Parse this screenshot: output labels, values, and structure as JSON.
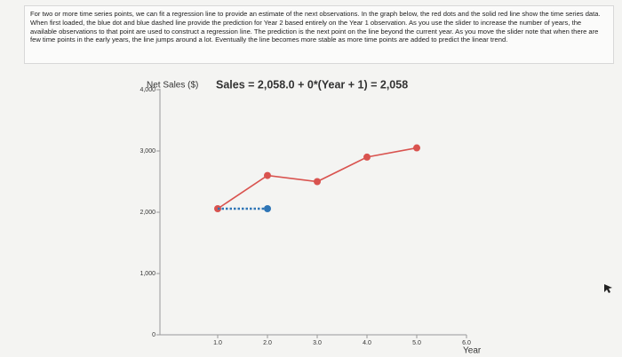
{
  "intro": "For two or more time series points, we can fit a regression line to provide an estimate of the next observations. In the graph below, the red dots and the solid red line show the time series data. When first loaded, the blue dot and blue dashed line provide the prediction for Year 2 based entirely on the Year 1 observation. As you use the slider to increase the number of years, the available observations to that point are used to construct a regression line. The prediction is the next point on the line beyond the current year. As you move the slider note that when there are few time points in the early years, the line jumps around a lot. Eventually the line becomes more stable as more time points are added to predict the linear trend.",
  "chart_data": {
    "type": "line",
    "ylabel": "Net Sales ($)",
    "equation": "Sales = 2,058.0 + 0*(Year + 1) = 2,058",
    "xlabel": "Year",
    "x": [
      1,
      2,
      3,
      4,
      5
    ],
    "series": [
      {
        "color": "#d9534f",
        "values": [
          2058,
          2600,
          2500,
          2900,
          3050
        ]
      },
      {
        "color": "#2e75b6",
        "dashed": true,
        "markers": "last",
        "x": [
          1,
          2
        ],
        "values": [
          2058,
          2058
        ]
      }
    ],
    "xlim": [
      0,
      6
    ],
    "xticks": [
      {
        "value": 1,
        "label": "1.0"
      },
      {
        "value": 2,
        "label": "2.0"
      },
      {
        "value": 3,
        "label": "3.0"
      },
      {
        "value": 4,
        "label": "4.0"
      },
      {
        "value": 5,
        "label": "5.0"
      },
      {
        "value": 6,
        "label": "6.0"
      }
    ],
    "ylim": [
      0,
      4000
    ],
    "yticks": [
      0,
      {
        "value": 1000,
        "label": "1,000"
      },
      {
        "value": 2000,
        "label": "2,000"
      },
      {
        "value": 3000,
        "label": "3,000"
      },
      {
        "value": 4000,
        "label": "4,000"
      }
    ],
    "grid": false
  }
}
